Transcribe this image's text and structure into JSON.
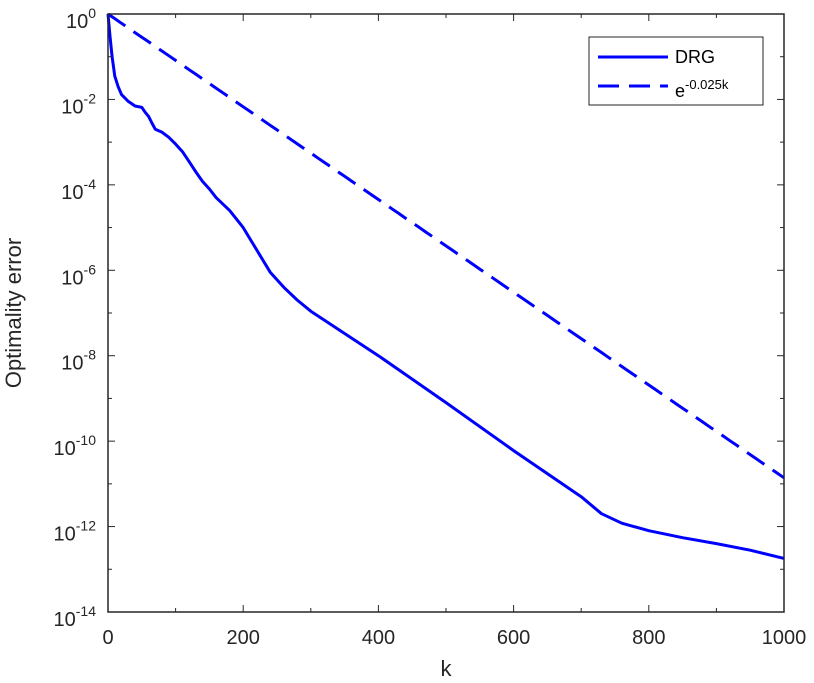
{
  "chart_data": {
    "type": "line",
    "xlabel": "k",
    "ylabel": "Optimality error",
    "xlim": [
      0,
      1000
    ],
    "ylim": [
      1e-14,
      1
    ],
    "y_scale": "log",
    "grid": false,
    "legend_position": "top-right",
    "x_ticks": [
      "0",
      "200",
      "400",
      "600",
      "800",
      "1000"
    ],
    "y_ticks": [
      {
        "base": "10",
        "exp": "0",
        "value": 1
      },
      {
        "base": "10",
        "exp": "-2",
        "value": 0.01
      },
      {
        "base": "10",
        "exp": "-4",
        "value": 0.0001
      },
      {
        "base": "10",
        "exp": "-6",
        "value": 1e-06
      },
      {
        "base": "10",
        "exp": "-8",
        "value": 1e-08
      },
      {
        "base": "10",
        "exp": "-10",
        "value": 1e-10
      },
      {
        "base": "10",
        "exp": "-12",
        "value": 1e-12
      },
      {
        "base": "10",
        "exp": "-14",
        "value": 1e-14
      }
    ],
    "series": [
      {
        "name": "DRG",
        "style": "solid",
        "color": "#0000ff",
        "points": [
          [
            0,
            1
          ],
          [
            3,
            0.3
          ],
          [
            6,
            0.1
          ],
          [
            10,
            0.035
          ],
          [
            15,
            0.02
          ],
          [
            20,
            0.013
          ],
          [
            30,
            0.009
          ],
          [
            40,
            0.007
          ],
          [
            50,
            0.0065
          ],
          [
            55,
            0.005
          ],
          [
            60,
            0.004
          ],
          [
            65,
            0.0028
          ],
          [
            70,
            0.002
          ],
          [
            80,
            0.0017
          ],
          [
            90,
            0.0013
          ],
          [
            100,
            0.0009
          ],
          [
            110,
            0.0006
          ],
          [
            120,
            0.00035
          ],
          [
            130,
            0.0002
          ],
          [
            140,
            0.00012
          ],
          [
            150,
            8e-05
          ],
          [
            160,
            5e-05
          ],
          [
            180,
            2.5e-05
          ],
          [
            200,
            1e-05
          ],
          [
            220,
            3e-06
          ],
          [
            240,
            9e-07
          ],
          [
            260,
            4e-07
          ],
          [
            280,
            2e-07
          ],
          [
            300,
            1.1e-07
          ],
          [
            400,
            1e-08
          ],
          [
            500,
            8e-10
          ],
          [
            600,
            6e-11
          ],
          [
            700,
            5e-12
          ],
          [
            730,
            2e-12
          ],
          [
            760,
            1.2e-12
          ],
          [
            800,
            8e-13
          ],
          [
            850,
            5.5e-13
          ],
          [
            900,
            4e-13
          ],
          [
            950,
            2.8e-13
          ],
          [
            1000,
            1.8e-13
          ]
        ]
      },
      {
        "name": "e^{-0.025k}",
        "label_base": "e",
        "label_exp": "-0.025k",
        "style": "dashed",
        "color": "#0000ff",
        "formula_rate": 0.025
      }
    ]
  }
}
